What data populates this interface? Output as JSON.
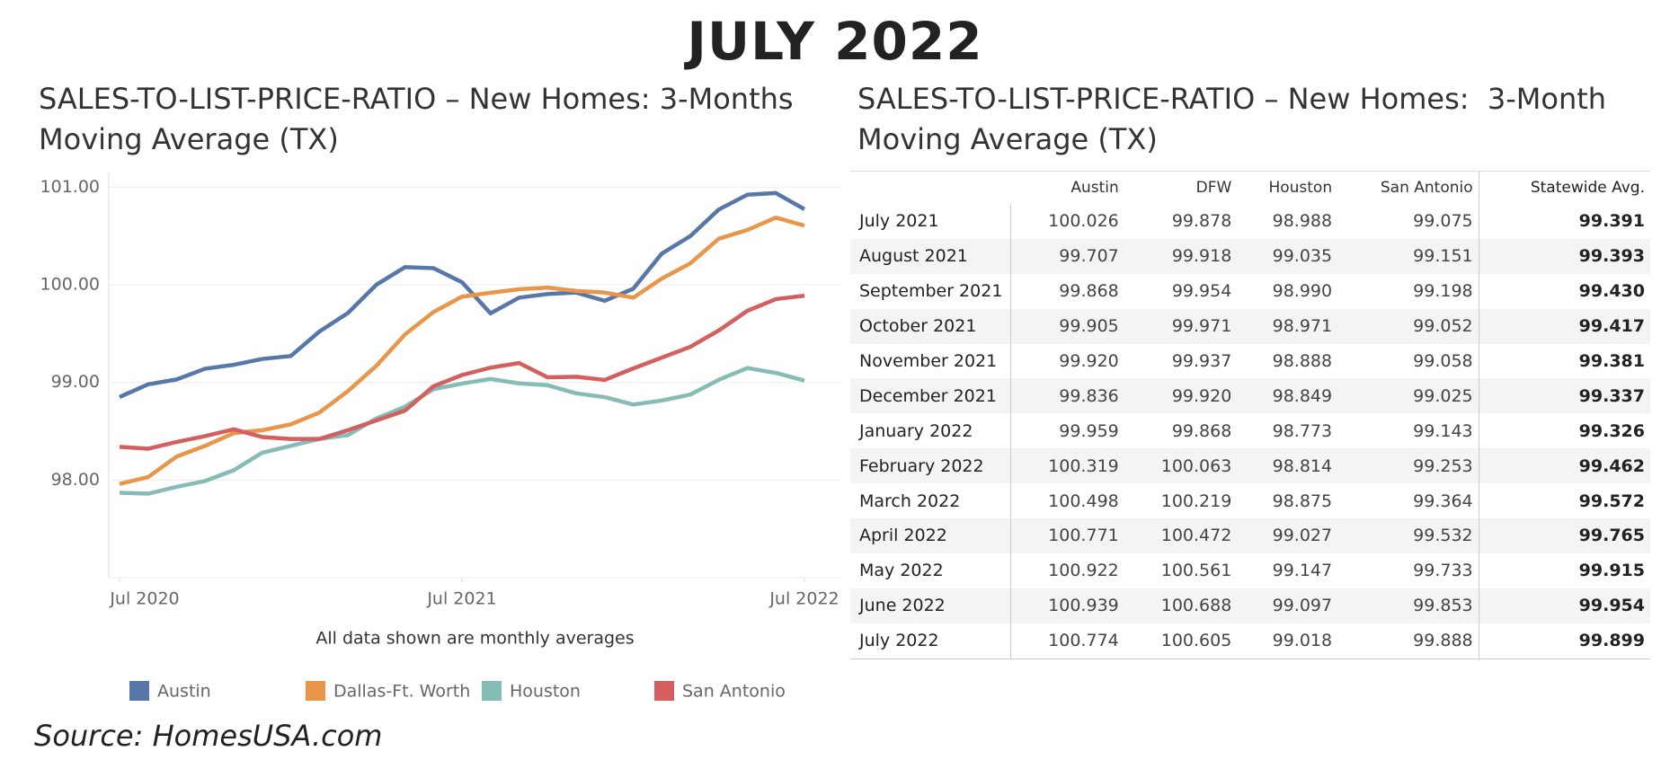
{
  "title": "JULY 2022",
  "chart_data": {
    "type": "line",
    "title": "SALES-TO-LIST-PRICE-RATIO – New Homes: 3-Months Moving Average (TX)",
    "note": "All data shown are monthly averages",
    "x": [
      "2020-07",
      "2020-08",
      "2020-09",
      "2020-10",
      "2020-11",
      "2020-12",
      "2021-01",
      "2021-02",
      "2021-03",
      "2021-04",
      "2021-05",
      "2021-06",
      "2021-07",
      "2021-08",
      "2021-09",
      "2021-10",
      "2021-11",
      "2021-12",
      "2022-01",
      "2022-02",
      "2022-03",
      "2022-04",
      "2022-05",
      "2022-06",
      "2022-07"
    ],
    "xlim": [
      "2020-07",
      "2022-07"
    ],
    "xticks": [
      {
        "value": "2020-07",
        "label": "Jul 2020"
      },
      {
        "value": "2021-07",
        "label": "Jul 2021"
      },
      {
        "value": "2022-07",
        "label": "Jul 2022"
      }
    ],
    "ylim": [
      97,
      101.15
    ],
    "yticks": [
      {
        "value": 98,
        "label": "98.00"
      },
      {
        "value": 99,
        "label": "99.00"
      },
      {
        "value": 100,
        "label": "100.00"
      },
      {
        "value": 101,
        "label": "101.00"
      }
    ],
    "grid": true,
    "series": [
      {
        "name": "Austin",
        "color": "#5677a8",
        "values": [
          98.85,
          98.98,
          99.03,
          99.14,
          99.18,
          99.24,
          99.27,
          99.52,
          99.71,
          100.0,
          100.18,
          100.17,
          100.026,
          99.707,
          99.868,
          99.905,
          99.92,
          99.836,
          99.959,
          100.319,
          100.498,
          100.771,
          100.922,
          100.939,
          100.774
        ]
      },
      {
        "name": "Dallas-Ft. Worth",
        "color": "#e8964a",
        "values": [
          97.96,
          98.03,
          98.24,
          98.35,
          98.48,
          98.51,
          98.57,
          98.69,
          98.91,
          99.17,
          99.49,
          99.72,
          99.878,
          99.918,
          99.954,
          99.971,
          99.937,
          99.92,
          99.868,
          100.063,
          100.219,
          100.472,
          100.561,
          100.688,
          100.605
        ]
      },
      {
        "name": "Houston",
        "color": "#86bcb6",
        "values": [
          97.87,
          97.86,
          97.93,
          97.99,
          98.1,
          98.28,
          98.35,
          98.42,
          98.46,
          98.63,
          98.75,
          98.93,
          98.988,
          99.035,
          98.99,
          98.971,
          98.888,
          98.849,
          98.773,
          98.814,
          98.875,
          99.027,
          99.147,
          99.097,
          99.018
        ]
      },
      {
        "name": "San Antonio",
        "color": "#d35f5f",
        "values": [
          98.34,
          98.32,
          98.39,
          98.45,
          98.52,
          98.44,
          98.42,
          98.42,
          98.51,
          98.61,
          98.71,
          98.96,
          99.075,
          99.151,
          99.198,
          99.052,
          99.058,
          99.025,
          99.143,
          99.253,
          99.364,
          99.532,
          99.733,
          99.853,
          99.888
        ]
      }
    ]
  },
  "table": {
    "title": "SALES-TO-LIST-PRICE-RATIO – New Homes:  3-Month Moving Average (TX)",
    "columns": [
      "Austin",
      "DFW",
      "Houston",
      "San Antonio",
      "Statewide Avg."
    ],
    "rows": [
      [
        "July 2021",
        "100.026",
        "99.878",
        "98.988",
        "99.075",
        "99.391"
      ],
      [
        "August 2021",
        "99.707",
        "99.918",
        "99.035",
        "99.151",
        "99.393"
      ],
      [
        "September 2021",
        "99.868",
        "99.954",
        "98.990",
        "99.198",
        "99.430"
      ],
      [
        "October 2021",
        "99.905",
        "99.971",
        "98.971",
        "99.052",
        "99.417"
      ],
      [
        "November 2021",
        "99.920",
        "99.937",
        "98.888",
        "99.058",
        "99.381"
      ],
      [
        "December 2021",
        "99.836",
        "99.920",
        "98.849",
        "99.025",
        "99.337"
      ],
      [
        "January 2022",
        "99.959",
        "99.868",
        "98.773",
        "99.143",
        "99.326"
      ],
      [
        "February 2022",
        "100.319",
        "100.063",
        "98.814",
        "99.253",
        "99.462"
      ],
      [
        "March 2022",
        "100.498",
        "100.219",
        "98.875",
        "99.364",
        "99.572"
      ],
      [
        "April 2022",
        "100.771",
        "100.472",
        "99.027",
        "99.532",
        "99.765"
      ],
      [
        "May 2022",
        "100.922",
        "100.561",
        "99.147",
        "99.733",
        "99.915"
      ],
      [
        "June 2022",
        "100.939",
        "100.688",
        "99.097",
        "99.853",
        "99.954"
      ],
      [
        "July 2022",
        "100.774",
        "100.605",
        "99.018",
        "99.888",
        "99.899"
      ]
    ]
  },
  "source": "Source: HomesUSA.com"
}
